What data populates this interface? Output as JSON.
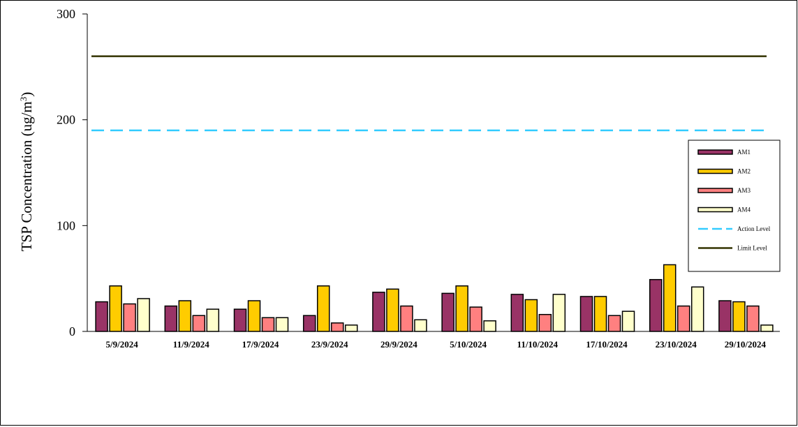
{
  "chart_data": {
    "type": "bar",
    "ylabel": "TSP Concentration (ug/m",
    "ylabel_sup": "3",
    "ylabel_close": ")",
    "ylim": [
      0,
      300
    ],
    "yticks": [
      "0",
      "100",
      "200",
      "300"
    ],
    "categories": [
      "5/9/2024",
      "11/9/2024",
      "17/9/2024",
      "23/9/2024",
      "29/9/2024",
      "5/10/2024",
      "11/10/2024",
      "17/10/2024",
      "23/10/2024",
      "29/10/2024"
    ],
    "series": [
      {
        "name": "AM1",
        "color": "#993366",
        "values": [
          28,
          24,
          21,
          15,
          37,
          36,
          35,
          33,
          49,
          29
        ]
      },
      {
        "name": "AM2",
        "color": "#FFCC00",
        "values": [
          43,
          29,
          29,
          43,
          40,
          43,
          30,
          33,
          63,
          28
        ]
      },
      {
        "name": "AM3",
        "color": "#FF8080",
        "values": [
          26,
          15,
          13,
          8,
          24,
          23,
          16,
          15,
          24,
          24
        ]
      },
      {
        "name": "AM4",
        "color": "#FFFFCC",
        "values": [
          31,
          21,
          13,
          6,
          11,
          10,
          35,
          19,
          42,
          6
        ]
      }
    ],
    "reference_lines": [
      {
        "name": "Action Level",
        "value": 190,
        "color": "#33CCFF",
        "style": "dashed"
      },
      {
        "name": "Limit Level",
        "value": 260,
        "color": "#333300",
        "style": "solid"
      }
    ],
    "legend_position": "right"
  }
}
